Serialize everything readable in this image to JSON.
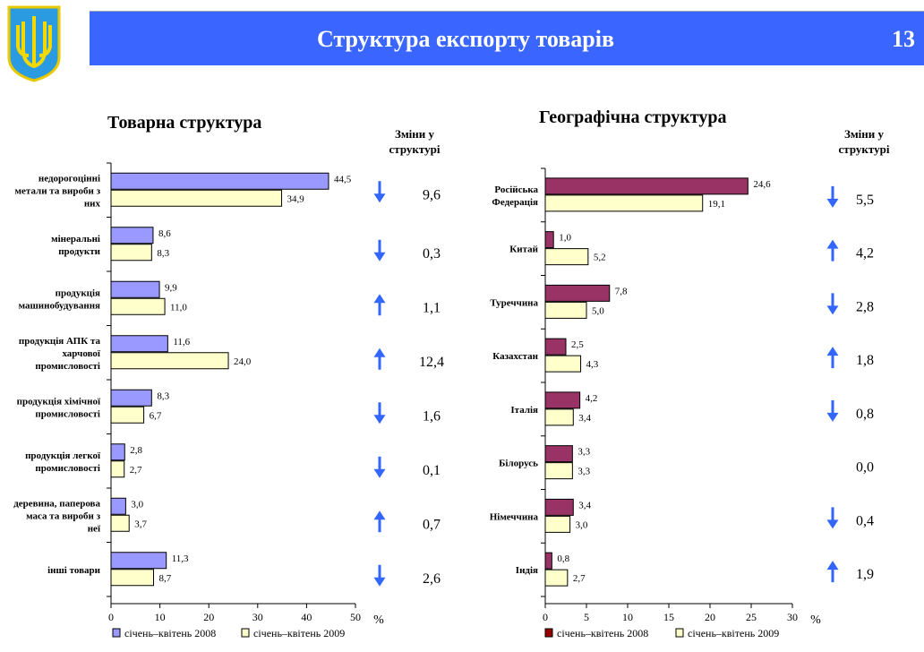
{
  "header": {
    "title": "Структура експорту товарів",
    "page_number": "13"
  },
  "changes_label": "Зміни у структурі",
  "chart_data": [
    {
      "type": "bar",
      "title": "Товарна структура",
      "unit": "%",
      "xlim": [
        0,
        50
      ],
      "ticks": [
        "0",
        "10",
        "20",
        "30",
        "40",
        "50"
      ],
      "categories": [
        "недорогоцінні метали та вироби з них",
        "мінеральні продукти",
        "продукція машинобудування",
        "продукція АПК та харчової промисловості",
        "продукція хімічної промисловості",
        "продукція легкої промисловості",
        "деревина, паперова маса та вироби з неї",
        "інші товари"
      ],
      "series": [
        {
          "name": "січень–квітень 2008",
          "color": "#9999ff",
          "values": [
            44.5,
            8.6,
            9.9,
            11.6,
            8.3,
            2.8,
            3.0,
            11.3
          ],
          "labels": [
            "44,5",
            "8,6",
            "9,9",
            "11,6",
            "8,3",
            "2,8",
            "3,0",
            "11,3"
          ]
        },
        {
          "name": "січень–квітень 2009",
          "color": "#ffffcc",
          "values": [
            34.9,
            8.3,
            11.0,
            24.0,
            6.7,
            2.7,
            3.7,
            8.7
          ],
          "labels": [
            "34,9",
            "8,3",
            "11,0",
            "24,0",
            "6,7",
            "2,7",
            "3,7",
            "8,7"
          ]
        }
      ],
      "changes": [
        "9,6",
        "0,3",
        "1,1",
        "12,4",
        "1,6",
        "0,1",
        "0,7",
        "2,6"
      ],
      "directions": [
        "down",
        "down",
        "up",
        "up",
        "down",
        "down",
        "up",
        "down"
      ]
    },
    {
      "type": "bar",
      "title": "Географічна структура",
      "unit": "%",
      "xlim": [
        0,
        30
      ],
      "ticks": [
        "0",
        "5",
        "10",
        "15",
        "20",
        "25",
        "30"
      ],
      "categories": [
        "Російська Федерація",
        "Китай",
        "Туреччина",
        "Казахстан",
        "Італія",
        "Білорусь",
        "Німеччина",
        "Індія"
      ],
      "series": [
        {
          "name": "січень–квітень 2008",
          "color": "#993366",
          "legend_color": "#990000",
          "values": [
            24.6,
            1.0,
            7.8,
            2.5,
            4.2,
            3.3,
            3.4,
            0.8
          ],
          "labels": [
            "24,6",
            "1,0",
            "7,8",
            "2,5",
            "4,2",
            "3,3",
            "3,4",
            "0,8"
          ]
        },
        {
          "name": "січень–квітень 2009",
          "color": "#ffffcc",
          "values": [
            19.1,
            5.2,
            5.0,
            4.3,
            3.4,
            3.3,
            3.0,
            2.7
          ],
          "labels": [
            "19,1",
            "5,2",
            "5,0",
            "4,3",
            "3,4",
            "3,3",
            "3,0",
            "2,7"
          ]
        }
      ],
      "changes": [
        "5,5",
        "4,2",
        "2,8",
        "1,8",
        "0,8",
        "0,0",
        "0,4",
        "1,9"
      ],
      "directions": [
        "down",
        "up",
        "down",
        "up",
        "down",
        "none",
        "down",
        "up"
      ]
    }
  ],
  "colors": {
    "banner": "#3a66ff",
    "arrow": "#3366ff"
  }
}
